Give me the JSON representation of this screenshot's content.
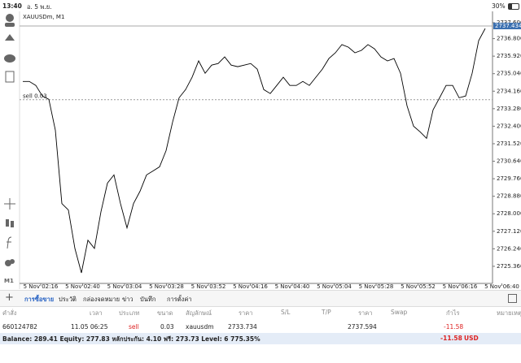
{
  "status_bar": {
    "time": "13:40",
    "date": "อ. 5 พ.ย.",
    "battery": "30%"
  },
  "toolbar": {
    "timeframe": "M1"
  },
  "chart_data": {
    "type": "line",
    "title": "XAUUSDm, M1",
    "x_labels": [
      "5 Nov 02:16",
      "5 Nov 02:40",
      "5 Nov 03:04",
      "5 Nov 03:28",
      "5 Nov 03:52",
      "5 Nov 04:16",
      "5 Nov 04:40",
      "5 Nov 05:04",
      "5 Nov 05:28",
      "5 Nov 05:52",
      "5 Nov 06:16",
      "5 Nov 06:40"
    ],
    "series": [
      {
        "name": "XAUUSDm",
        "color": "#000000",
        "values": [
          2734.65,
          2734.65,
          2734.45,
          2733.92,
          2733.75,
          2732.2,
          2728.51,
          2728.19,
          2726.26,
          2725.03,
          2726.67,
          2726.26,
          2728.1,
          2729.54,
          2729.95,
          2728.51,
          2727.29,
          2728.51,
          2729.13,
          2729.95,
          2730.15,
          2730.36,
          2731.17,
          2732.61,
          2733.83,
          2734.24,
          2734.86,
          2735.68,
          2735.06,
          2735.47,
          2735.55,
          2735.88,
          2735.47,
          2735.39,
          2735.47,
          2735.55,
          2735.27,
          2734.24,
          2734.04,
          2734.45,
          2734.86,
          2734.45,
          2734.45,
          2734.65,
          2734.45,
          2734.86,
          2735.27,
          2735.8,
          2736.09,
          2736.5,
          2736.37,
          2736.09,
          2736.21,
          2736.5,
          2736.29,
          2735.88,
          2735.68,
          2735.8,
          2735.06,
          2733.43,
          2732.4,
          2732.12,
          2731.79,
          2733.22,
          2733.83,
          2734.45,
          2734.45,
          2733.83,
          2733.92,
          2735.06,
          2736.7,
          2737.31
        ]
      }
    ],
    "ylim": [
      2724.5,
      2738.17
    ],
    "yticks": [
      {
        "value": 2725.36,
        "label": "2725.360"
      },
      {
        "value": 2726.24,
        "label": "2726.240"
      },
      {
        "value": 2727.12,
        "label": "2727.120"
      },
      {
        "value": 2728.0,
        "label": "2728.000"
      },
      {
        "value": 2728.88,
        "label": "2728.880"
      },
      {
        "value": 2729.76,
        "label": "2729.760"
      },
      {
        "value": 2730.64,
        "label": "2730.640"
      },
      {
        "value": 2731.52,
        "label": "2731.520"
      },
      {
        "value": 2732.4,
        "label": "2732.400"
      },
      {
        "value": 2733.28,
        "label": "2733.280"
      },
      {
        "value": 2734.16,
        "label": "2734.160"
      },
      {
        "value": 2735.04,
        "label": "2735.040"
      },
      {
        "value": 2735.92,
        "label": "2735.920"
      },
      {
        "value": 2736.8,
        "label": "2736.800"
      },
      {
        "value": 2737.6,
        "label": "2737.600"
      }
    ],
    "current_price": 2737.434,
    "sell_line": {
      "label": "sell 0.03",
      "value": 2733.734
    },
    "grid": false
  },
  "tabs": [
    "การซื้อขาย",
    "ประวัติ",
    "กล่องจดหมาย",
    "ข่าว",
    "บันทึก",
    "การตั้งค่า"
  ],
  "table": {
    "headers": [
      "คำสั่ง",
      "เวลา",
      "ประเภท",
      "ขนาด",
      "สัญลักษณ์",
      "ราคา",
      "S/L",
      "T/P",
      "ราคา",
      "Swap",
      "กำไร",
      "หมายเหตุ"
    ],
    "row": {
      "order": "660124782",
      "time": "11.05 06:25",
      "type": "sell",
      "size": "0.03",
      "symbol": "xauusdm",
      "open_price": "2733.734",
      "price": "2737.594",
      "profit": "-11.58"
    }
  },
  "summary": {
    "text": "Balance: 289.41 Equity: 277.83 หลักประกัน: 4.10 ฟรี: 273.73 Level: 6 775.35%",
    "profit": "-11.58",
    "currency": "USD"
  }
}
